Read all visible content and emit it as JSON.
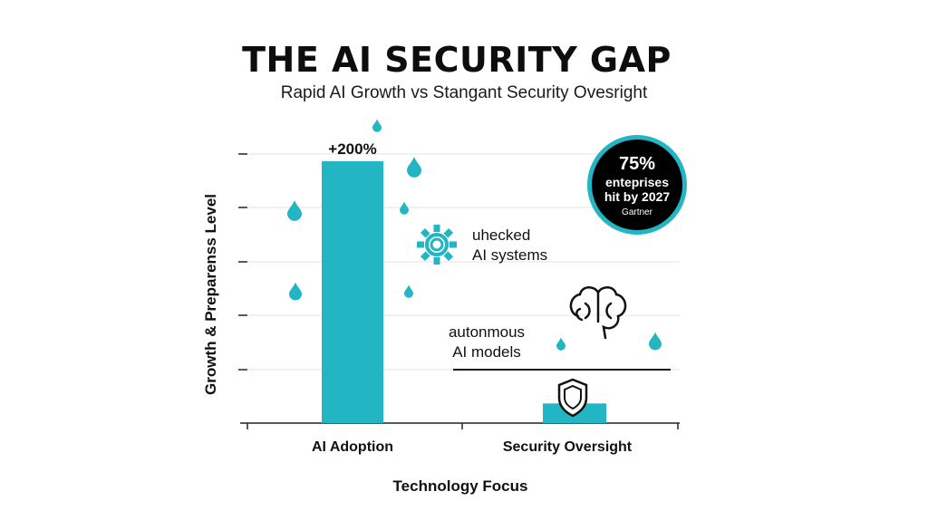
{
  "chart_data": {
    "type": "bar",
    "title": "THE AI SECURITY GAP",
    "subtitle": "Rapid AI Growth vs Stangant Security Ovesright",
    "xlabel": "Technology Focus",
    "ylabel": "Growth & Preparenss Level",
    "categories": [
      "AI Adoption",
      "Security Oversight"
    ],
    "values": [
      200,
      15
    ],
    "data_labels": [
      "+200%",
      ""
    ],
    "ylim": [
      0,
      210
    ],
    "grid": true,
    "bar_color": "#22b5c3"
  },
  "badge": {
    "value": "75%",
    "line1": "enteprises",
    "line2": "hit by 2027",
    "source": "Gartner"
  },
  "annotations": {
    "unchecked_line1": "uhecked",
    "unchecked_line2": "AI systems",
    "autonomous_line1": "autonmous",
    "autonomous_line2": "AI models"
  },
  "icons": {
    "gear": "gear-icon",
    "brain": "brain-icon",
    "shield": "shield-icon",
    "drop": "water-drop-icon"
  },
  "colors": {
    "accent": "#22b5c3",
    "badge_bg": "#000000",
    "text": "#111111"
  }
}
